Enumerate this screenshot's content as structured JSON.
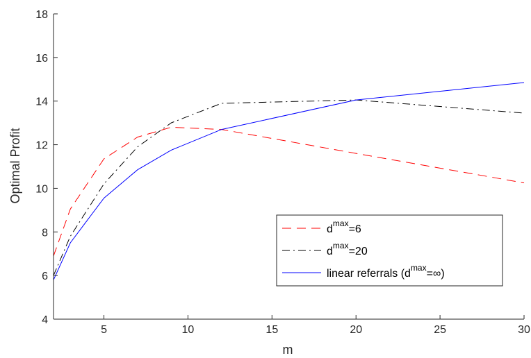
{
  "chart_data": {
    "type": "line",
    "xlabel": "m",
    "ylabel": "Optimal Profit",
    "xlim": [
      2,
      30
    ],
    "ylim": [
      4,
      18
    ],
    "xticks": [
      5,
      10,
      15,
      20,
      25,
      30
    ],
    "yticks": [
      4,
      6,
      8,
      10,
      12,
      14,
      16,
      18
    ],
    "grid": false,
    "legend_position": "lower-right",
    "series": [
      {
        "legend_base": "d",
        "legend_sup": "max",
        "legend_rest": "=6",
        "color": "#ff0000",
        "style": "dashed",
        "x": [
          2,
          3,
          5,
          7,
          9,
          12,
          20,
          30
        ],
        "y": [
          6.9,
          9.05,
          11.35,
          12.35,
          12.8,
          12.7,
          11.6,
          10.25
        ]
      },
      {
        "legend_base": "d",
        "legend_sup": "max",
        "legend_rest": "=20",
        "color": "#000000",
        "style": "dashdot",
        "x": [
          2,
          3,
          5,
          7,
          9,
          12,
          20,
          30
        ],
        "y": [
          6.0,
          7.8,
          10.2,
          11.9,
          13.0,
          13.9,
          14.05,
          13.45
        ]
      },
      {
        "legend_base": "linear referrals (d",
        "legend_sup": "max",
        "legend_rest": "=∞)",
        "color": "#0000ff",
        "style": "solid",
        "x": [
          2,
          3,
          5,
          7,
          9,
          12,
          20,
          30
        ],
        "y": [
          5.8,
          7.5,
          9.55,
          10.85,
          11.75,
          12.7,
          14.05,
          14.85
        ]
      }
    ]
  }
}
